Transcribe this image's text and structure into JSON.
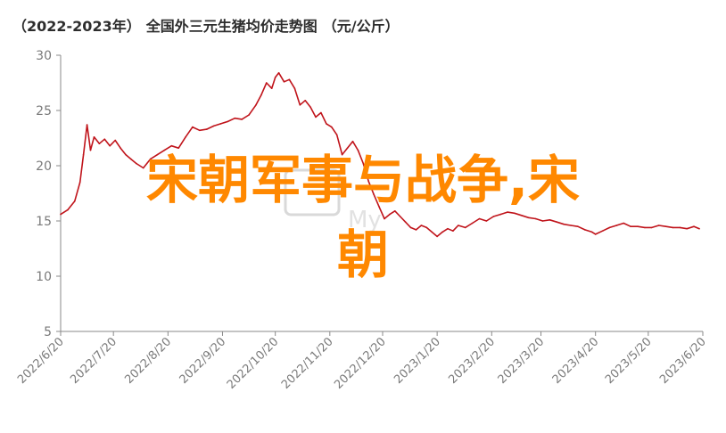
{
  "title": {
    "period": "（2022-2023年）",
    "text": "全国外三元生猪均价走势图",
    "unit": "（元/公斤）"
  },
  "overlay_text": {
    "line1": "宋朝军事与战争,宋",
    "line2": "朝"
  },
  "colors": {
    "line": "#c0141b",
    "overlay": "#ff8800",
    "axis": "#8a8a8a",
    "tick_text": "#7a7a7a",
    "title": "#2d2d2d"
  },
  "chart_data": {
    "type": "line",
    "title": "（2022-2023年）全国外三元生猪均价走势图（元/公斤）",
    "xlabel": "",
    "ylabel": "",
    "ylim": [
      5,
      30
    ],
    "yticks": [
      "5",
      "10",
      "15",
      "20",
      "25",
      "30"
    ],
    "xticks": [
      "2022/6/20",
      "2022/7/20",
      "2022/8/20",
      "2022/9/20",
      "2022/10/20",
      "2022/11/20",
      "2022/12/20",
      "2023/1/20",
      "2023/2/20",
      "2023/3/20",
      "2023/4/20",
      "2023/5/20",
      "2023/6/20"
    ],
    "xlim": [
      "2022-06-20",
      "2023-06-20"
    ],
    "grid": false,
    "series": [
      {
        "name": "",
        "color": "#c0141b",
        "points": [
          [
            "2022-06-20",
            15.6
          ],
          [
            "2022-06-24",
            16.0
          ],
          [
            "2022-06-28",
            16.8
          ],
          [
            "2022-07-01",
            18.5
          ],
          [
            "2022-07-03",
            21.0
          ],
          [
            "2022-07-05",
            23.7
          ],
          [
            "2022-07-07",
            21.4
          ],
          [
            "2022-07-09",
            22.6
          ],
          [
            "2022-07-12",
            22.0
          ],
          [
            "2022-07-15",
            22.4
          ],
          [
            "2022-07-18",
            21.8
          ],
          [
            "2022-07-21",
            22.3
          ],
          [
            "2022-07-24",
            21.6
          ],
          [
            "2022-07-27",
            21.0
          ],
          [
            "2022-07-30",
            20.6
          ],
          [
            "2022-08-02",
            20.2
          ],
          [
            "2022-08-06",
            19.8
          ],
          [
            "2022-08-10",
            20.6
          ],
          [
            "2022-08-14",
            21.0
          ],
          [
            "2022-08-18",
            21.4
          ],
          [
            "2022-08-22",
            21.8
          ],
          [
            "2022-08-26",
            21.6
          ],
          [
            "2022-08-30",
            22.6
          ],
          [
            "2022-09-03",
            23.5
          ],
          [
            "2022-09-07",
            23.2
          ],
          [
            "2022-09-11",
            23.3
          ],
          [
            "2022-09-15",
            23.6
          ],
          [
            "2022-09-19",
            23.8
          ],
          [
            "2022-09-23",
            24.0
          ],
          [
            "2022-09-27",
            24.3
          ],
          [
            "2022-10-01",
            24.2
          ],
          [
            "2022-10-05",
            24.6
          ],
          [
            "2022-10-09",
            25.5
          ],
          [
            "2022-10-12",
            26.4
          ],
          [
            "2022-10-15",
            27.5
          ],
          [
            "2022-10-18",
            27.0
          ],
          [
            "2022-10-20",
            28.0
          ],
          [
            "2022-10-22",
            28.4
          ],
          [
            "2022-10-25",
            27.6
          ],
          [
            "2022-10-28",
            27.8
          ],
          [
            "2022-10-31",
            27.0
          ],
          [
            "2022-11-03",
            25.5
          ],
          [
            "2022-11-06",
            25.9
          ],
          [
            "2022-11-09",
            25.3
          ],
          [
            "2022-11-12",
            24.4
          ],
          [
            "2022-11-15",
            24.8
          ],
          [
            "2022-11-18",
            23.8
          ],
          [
            "2022-11-21",
            23.5
          ],
          [
            "2022-11-24",
            22.8
          ],
          [
            "2022-11-27",
            21.0
          ],
          [
            "2022-11-30",
            21.6
          ],
          [
            "2022-12-03",
            22.2
          ],
          [
            "2022-12-06",
            21.4
          ],
          [
            "2022-12-09",
            20.2
          ],
          [
            "2022-12-12",
            18.6
          ],
          [
            "2022-12-15",
            17.4
          ],
          [
            "2022-12-18",
            16.3
          ],
          [
            "2022-12-21",
            15.2
          ],
          [
            "2022-12-24",
            15.6
          ],
          [
            "2022-12-27",
            15.9
          ],
          [
            "2022-12-30",
            15.4
          ],
          [
            "2023-01-02",
            14.9
          ],
          [
            "2023-01-05",
            14.4
          ],
          [
            "2023-01-08",
            14.2
          ],
          [
            "2023-01-11",
            14.6
          ],
          [
            "2023-01-14",
            14.4
          ],
          [
            "2023-01-17",
            14.0
          ],
          [
            "2023-01-20",
            13.6
          ],
          [
            "2023-01-23",
            14.0
          ],
          [
            "2023-01-26",
            14.3
          ],
          [
            "2023-01-29",
            14.1
          ],
          [
            "2023-02-01",
            14.6
          ],
          [
            "2023-02-05",
            14.4
          ],
          [
            "2023-02-09",
            14.8
          ],
          [
            "2023-02-13",
            15.2
          ],
          [
            "2023-02-17",
            15.0
          ],
          [
            "2023-02-21",
            15.4
          ],
          [
            "2023-02-25",
            15.6
          ],
          [
            "2023-03-01",
            15.8
          ],
          [
            "2023-03-05",
            15.7
          ],
          [
            "2023-03-09",
            15.5
          ],
          [
            "2023-03-13",
            15.3
          ],
          [
            "2023-03-17",
            15.2
          ],
          [
            "2023-03-21",
            15.0
          ],
          [
            "2023-03-25",
            15.1
          ],
          [
            "2023-03-29",
            14.9
          ],
          [
            "2023-04-02",
            14.7
          ],
          [
            "2023-04-06",
            14.6
          ],
          [
            "2023-04-10",
            14.5
          ],
          [
            "2023-04-14",
            14.2
          ],
          [
            "2023-04-18",
            14.0
          ],
          [
            "2023-04-20",
            13.8
          ],
          [
            "2023-04-24",
            14.1
          ],
          [
            "2023-04-28",
            14.4
          ],
          [
            "2023-05-02",
            14.6
          ],
          [
            "2023-05-06",
            14.8
          ],
          [
            "2023-05-10",
            14.5
          ],
          [
            "2023-05-14",
            14.5
          ],
          [
            "2023-05-18",
            14.4
          ],
          [
            "2023-05-22",
            14.4
          ],
          [
            "2023-05-26",
            14.6
          ],
          [
            "2023-05-30",
            14.5
          ],
          [
            "2023-06-03",
            14.4
          ],
          [
            "2023-06-07",
            14.4
          ],
          [
            "2023-06-11",
            14.3
          ],
          [
            "2023-06-15",
            14.5
          ],
          [
            "2023-06-18",
            14.3
          ]
        ]
      }
    ]
  }
}
